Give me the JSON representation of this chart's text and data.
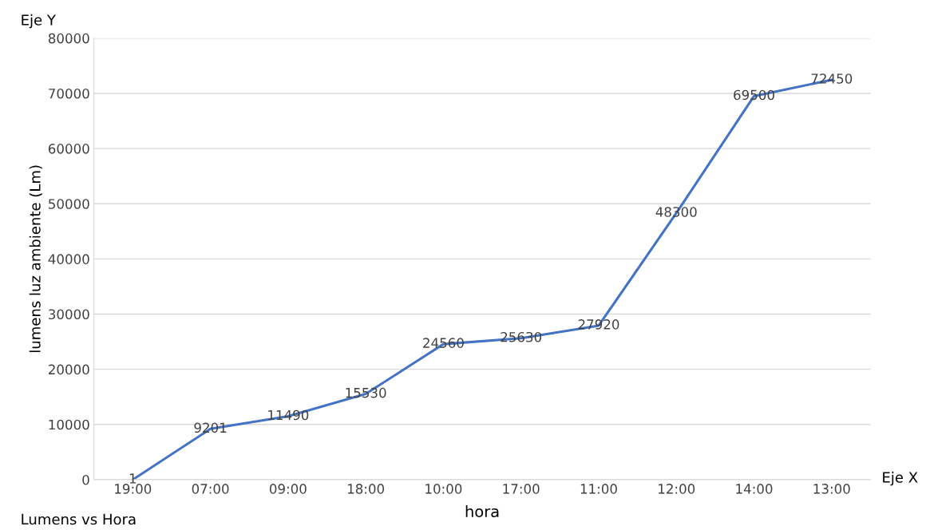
{
  "chart_data": {
    "type": "line",
    "xlabel": "hora",
    "ylabel": "lumens luz ambiente (Lm)",
    "annotations": [
      "Eje Y",
      "Eje X",
      "Lumens vs Hora"
    ],
    "categories": [
      "19:00",
      "07:00",
      "09:00",
      "18:00",
      "10:00",
      "17:00",
      "11:00",
      "12:00",
      "14:00",
      "13:00"
    ],
    "series": [
      {
        "color": "#4472c4",
        "values": [
          1,
          9201,
          11490,
          15530,
          24560,
          25630,
          27920,
          48300,
          69500,
          72450
        ]
      }
    ],
    "ylim": [
      0,
      80000
    ],
    "yticks": [
      0,
      10000,
      20000,
      30000,
      40000,
      50000,
      60000,
      70000,
      80000
    ],
    "grid": "y",
    "data_labels": true,
    "marker": "none",
    "line_style": "solid",
    "legend": false
  }
}
